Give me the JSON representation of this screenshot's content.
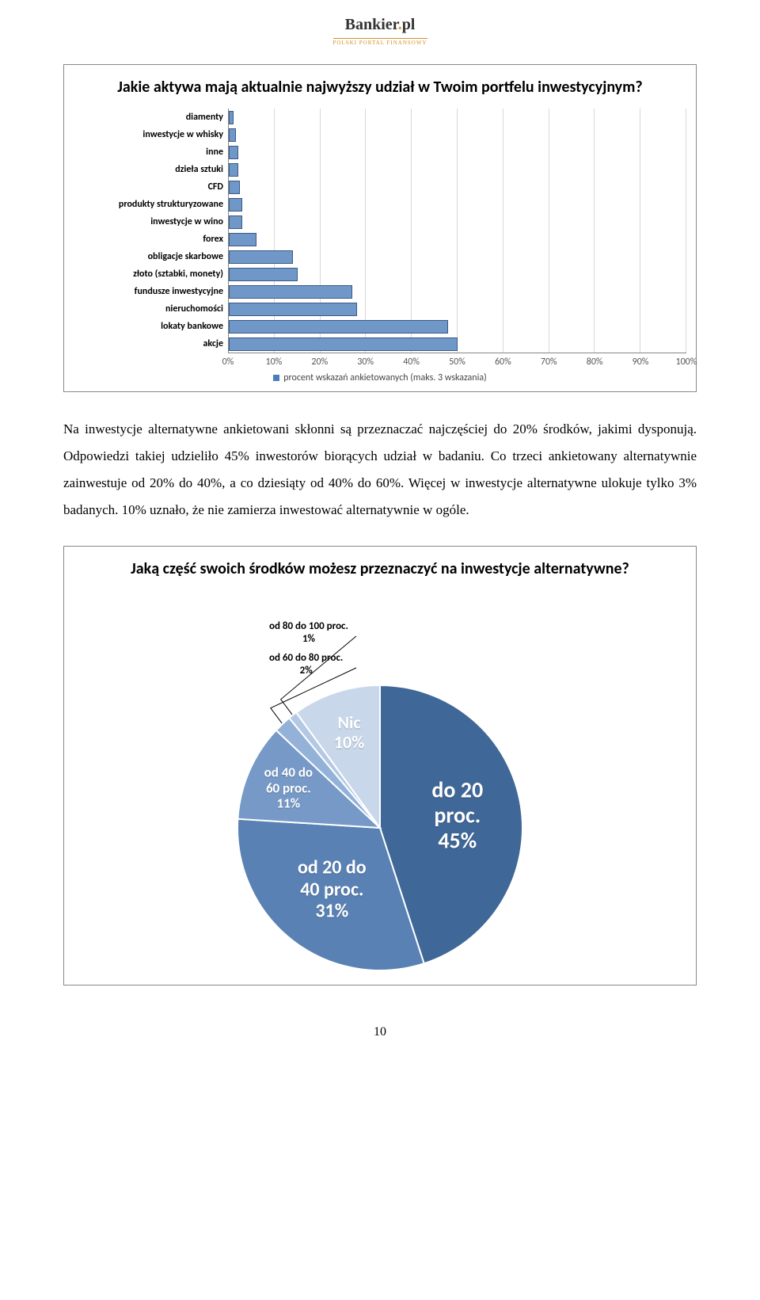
{
  "logo": {
    "name_a": "Bankier",
    "name_b": "pl",
    "tagline": "POLSKI PORTAL FINANSOWY"
  },
  "bar_chart": {
    "type": "bar",
    "title": "Jakie aktywa mają aktualnie najwyższy udział w Twoim portfelu inwestycyjnym?",
    "bar_color": "#6f97c8",
    "bar_border": "#3a5a86",
    "grid_color": "#d9d9d9",
    "background_color": "#ffffff",
    "xlim": [
      0,
      100
    ],
    "xtick_step": 10,
    "xticks": [
      "0%",
      "10%",
      "20%",
      "30%",
      "40%",
      "50%",
      "60%",
      "70%",
      "80%",
      "90%",
      "100%"
    ],
    "legend_text": "procent wskazań ankietowanych (maks. 3 wskazania)",
    "categories": [
      {
        "label": "diamenty",
        "value": 1
      },
      {
        "label": "inwestycje w whisky",
        "value": 1.5
      },
      {
        "label": "inne",
        "value": 2
      },
      {
        "label": "dzieła sztuki",
        "value": 2
      },
      {
        "label": "CFD",
        "value": 2.5
      },
      {
        "label": "produkty strukturyzowane",
        "value": 3
      },
      {
        "label": "inwestycje w wino",
        "value": 3
      },
      {
        "label": "forex",
        "value": 6
      },
      {
        "label": "obligacje skarbowe",
        "value": 14
      },
      {
        "label": "złoto (sztabki, monety)",
        "value": 15
      },
      {
        "label": "fundusze inwestycyjne",
        "value": 27
      },
      {
        "label": "nieruchomości",
        "value": 28
      },
      {
        "label": "lokaty bankowe",
        "value": 48
      },
      {
        "label": "akcje",
        "value": 50
      }
    ],
    "title_fontsize": 20,
    "label_fontsize": 12
  },
  "paragraph": "Na inwestycje alternatywne ankietowani skłonni są przeznaczać najczęściej do 20% środków, jakimi dysponują. Odpowiedzi takiej udzieliło 45% inwestorów biorących udział w badaniu. Co trzeci ankietowany alternatywnie zainwestuje od 20% do 40%, a co dziesiąty od 40% do 60%. Więcej w inwestycje alternatywne ulokuje tylko 3% badanych. 10% uznało, że nie zamierza inwestować alternatywnie w ogóle.",
  "pie_chart": {
    "type": "pie",
    "title": "Jaką część swoich środków możesz przeznaczyć na inwestycje alternatywne?",
    "background_color": "#ffffff",
    "title_fontsize": 20,
    "radius": 180,
    "slices": [
      {
        "label": "do 20 proc.",
        "value": 45,
        "color": "#3f6797",
        "label_fontsize": 28,
        "text_color": "#ffffff"
      },
      {
        "label": "od 20 do 40 proc.",
        "value": 31,
        "color": "#5a81b4",
        "label_fontsize": 24,
        "text_color": "#ffffff"
      },
      {
        "label": "od 40 do 60 proc.",
        "value": 11,
        "color": "#7699c7",
        "label_fontsize": 17,
        "text_color": "#ffffff"
      },
      {
        "label": "od 60 do 80 proc.",
        "value": 2,
        "color": "#94b2d8",
        "label_fontsize": 13,
        "text_color": "#000000"
      },
      {
        "label": "od 80 do 100 proc.",
        "value": 1,
        "color": "#b3c8e3",
        "label_fontsize": 13,
        "text_color": "#000000"
      },
      {
        "label": "Nic",
        "value": 10,
        "color": "#c9d7eb",
        "label_fontsize": 22,
        "text_color": "#ffffff"
      }
    ],
    "callouts": [
      {
        "line1": "od 80 do 100 proc.",
        "line2": "1%"
      },
      {
        "line1": "od 60 do 80 proc.",
        "line2": "2%"
      }
    ]
  },
  "page_number": "10"
}
